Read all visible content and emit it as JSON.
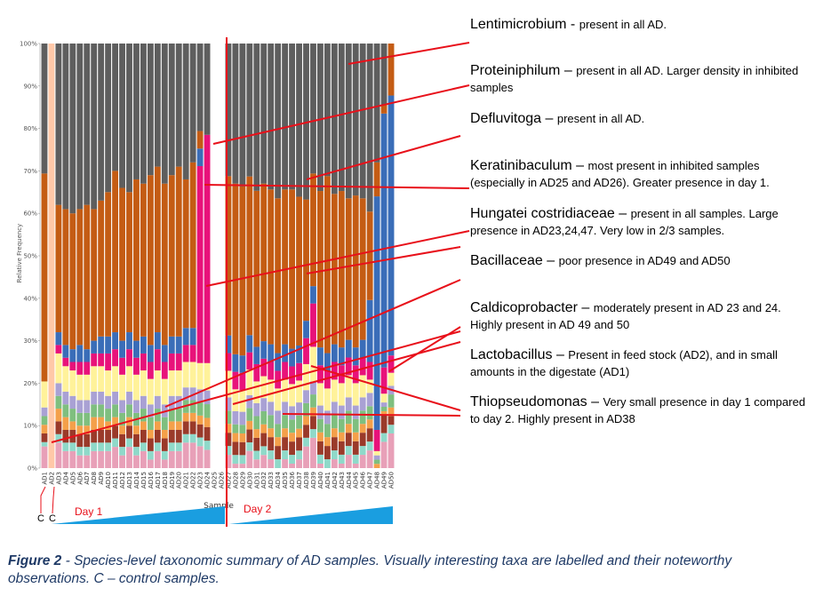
{
  "chart_data": {
    "type": "bar",
    "stacked": true,
    "ylabel": "Relative Frequency",
    "xlabel": "Sample",
    "yticks": [
      "0%",
      "10%",
      "20%",
      "30%",
      "40%",
      "50%",
      "60%",
      "70%",
      "80%",
      "90%",
      "100%"
    ],
    "categories": [
      "AD1",
      "AD2",
      "AD3",
      "AD4",
      "AD5",
      "AD6",
      "AD7",
      "AD8",
      "AD9",
      "AD10",
      "AD11",
      "AD12",
      "AD13",
      "AD14",
      "AD15",
      "AD16",
      "AD17",
      "AD18",
      "AD19",
      "AD20",
      "AD21",
      "AD22",
      "AD23",
      "AD24",
      "AD25",
      "AD26",
      "AD27",
      "AD28",
      "AD29",
      "AD30",
      "AD31",
      "AD32",
      "AD33",
      "AD34",
      "AD35",
      "AD36",
      "AD37",
      "AD38",
      "AD39",
      "AD40",
      "AD41",
      "AD42",
      "AD43",
      "AD44",
      "AD45",
      "AD46",
      "AD47",
      "AD48",
      "AD49",
      "AD50"
    ],
    "series": [
      {
        "name": "",
        "color": "#5e5e5e",
        "values": [
          30,
          0,
          38,
          39,
          40,
          39,
          38,
          39,
          37,
          35,
          30,
          34,
          35,
          32,
          33,
          31,
          29,
          33,
          31,
          29,
          32,
          28,
          20,
          20,
          0,
          0,
          30,
          32,
          33,
          31,
          34,
          32,
          33,
          35,
          33,
          33,
          35,
          36,
          30,
          33,
          30,
          34,
          33,
          35,
          34,
          35,
          38,
          28,
          14,
          0
        ]
      },
      {
        "name": "",
        "color": "#c45c14",
        "values": [
          48,
          0,
          30,
          32,
          32,
          32,
          34,
          31,
          32,
          34,
          38,
          36,
          33,
          38,
          36,
          40,
          39,
          38,
          38,
          40,
          35,
          39,
          4,
          0,
          0,
          0,
          36,
          39,
          39,
          37,
          36,
          36,
          35,
          35,
          35,
          36,
          34,
          28,
          26,
          35,
          40,
          34,
          35,
          32,
          34,
          32,
          20,
          8,
          2,
          12
        ]
      },
      {
        "name": "",
        "color": "#3a6db8",
        "values": [
          0,
          0,
          3,
          3,
          3,
          4,
          3,
          3,
          4,
          4,
          4,
          4,
          4,
          4,
          4,
          4,
          4,
          4,
          4,
          4,
          4,
          4,
          4,
          0,
          0,
          0,
          4,
          4,
          4,
          4,
          4,
          4,
          4,
          4,
          4,
          4,
          4,
          4,
          4,
          4,
          4,
          4,
          4,
          4,
          4,
          4,
          14,
          55,
          58,
          60
        ]
      },
      {
        "name": "",
        "color": "#e8127a",
        "values": [
          0,
          0,
          2,
          2,
          2,
          3,
          3,
          3,
          3,
          4,
          4,
          4,
          4,
          4,
          4,
          4,
          5,
          4,
          4,
          4,
          4,
          4,
          45,
          50,
          0,
          0,
          4,
          4,
          4,
          4,
          4,
          4,
          4,
          4,
          4,
          4,
          4,
          6,
          10,
          4,
          4,
          4,
          4,
          4,
          4,
          4,
          4,
          5,
          6,
          4
        ]
      },
      {
        "name": "",
        "color": "#fff29a",
        "values": [
          6,
          0,
          7,
          6,
          6,
          6,
          6,
          6,
          6,
          6,
          6,
          6,
          6,
          6,
          6,
          6,
          6,
          6,
          6,
          6,
          6,
          6,
          6,
          6,
          0,
          0,
          6,
          5,
          5,
          6,
          5,
          5,
          5,
          5,
          5,
          5,
          5,
          6,
          8,
          5,
          5,
          5,
          5,
          5,
          5,
          5,
          3,
          1,
          2,
          3
        ]
      },
      {
        "name": "",
        "color": "#a9a1d4",
        "values": [
          2,
          0,
          3,
          3,
          3,
          3,
          3,
          3,
          3,
          3,
          3,
          3,
          3,
          3,
          3,
          3,
          3,
          3,
          3,
          3,
          3,
          3,
          3,
          3,
          0,
          0,
          3,
          3,
          3,
          3,
          3,
          3,
          3,
          3,
          3,
          3,
          3,
          3,
          3,
          3,
          3,
          3,
          3,
          3,
          3,
          3,
          3,
          1,
          1,
          2
        ]
      },
      {
        "name": "",
        "color": "#7fbf7f",
        "values": [
          2,
          0,
          3,
          3,
          3,
          3,
          3,
          3,
          3,
          3,
          3,
          3,
          3,
          3,
          3,
          3,
          3,
          3,
          3,
          3,
          3,
          3,
          3,
          3,
          0,
          0,
          3,
          2,
          2,
          3,
          3,
          3,
          3,
          3,
          3,
          3,
          3,
          3,
          3,
          3,
          3,
          3,
          3,
          3,
          3,
          3,
          3,
          1,
          1,
          3
        ]
      },
      {
        "name": "",
        "color": "#f4a04a",
        "values": [
          2,
          0,
          3,
          3,
          2,
          2,
          2,
          3,
          3,
          2,
          2,
          2,
          2,
          2,
          2,
          2,
          2,
          2,
          2,
          2,
          2,
          2,
          2,
          2,
          0,
          0,
          2,
          2,
          2,
          2,
          2,
          2,
          2,
          2,
          2,
          2,
          2,
          2,
          2,
          2,
          2,
          2,
          2,
          2,
          2,
          2,
          2,
          1,
          1,
          2
        ]
      },
      {
        "name": "",
        "color": "#ffc8a8",
        "values": [
          0,
          100,
          0,
          0,
          0,
          0,
          0,
          0,
          0,
          0,
          0,
          0,
          0,
          0,
          0,
          0,
          0,
          0,
          0,
          0,
          0,
          0,
          0,
          0,
          0,
          0,
          0,
          0,
          0,
          0,
          0,
          0,
          0,
          0,
          0,
          0,
          0,
          0,
          0,
          0,
          0,
          0,
          0,
          0,
          0,
          0,
          0,
          0,
          0,
          0
        ]
      },
      {
        "name": "",
        "color": "#9a3a2a",
        "values": [
          2,
          0,
          3,
          3,
          3,
          3,
          3,
          3,
          3,
          3,
          3,
          3,
          3,
          3,
          3,
          3,
          3,
          3,
          3,
          3,
          3,
          3,
          3,
          3,
          0,
          0,
          3,
          3,
          3,
          3,
          3,
          3,
          3,
          3,
          3,
          3,
          3,
          3,
          3,
          3,
          3,
          3,
          3,
          3,
          3,
          3,
          3,
          0,
          4,
          2
        ]
      },
      {
        "name": "",
        "color": "#8fd9c9",
        "values": [
          1,
          0,
          2,
          2,
          2,
          2,
          2,
          2,
          2,
          2,
          2,
          2,
          2,
          2,
          2,
          2,
          2,
          2,
          2,
          2,
          2,
          2,
          2,
          2,
          0,
          0,
          2,
          2,
          2,
          2,
          2,
          2,
          2,
          2,
          2,
          2,
          2,
          2,
          2,
          2,
          2,
          2,
          2,
          2,
          2,
          2,
          2,
          0,
          2,
          2
        ]
      },
      {
        "name": "",
        "color": "#e8a0b8",
        "values": [
          5,
          0,
          6,
          4,
          4,
          3,
          3,
          4,
          4,
          4,
          5,
          3,
          5,
          3,
          4,
          2,
          4,
          2,
          4,
          4,
          6,
          6,
          5,
          4,
          0,
          0,
          3,
          1,
          1,
          4,
          2,
          3,
          2,
          0,
          2,
          1,
          2,
          5,
          7,
          1,
          0,
          2,
          1,
          3,
          1,
          3,
          4,
          0,
          6,
          8
        ]
      }
    ]
  },
  "sample_ticks": [
    "AD1",
    "AD2",
    "AD3",
    "AD4",
    "AD5",
    "AD6",
    "AD7",
    "AD8",
    "AD9",
    "AD10",
    "AD11",
    "AD12",
    "AD13",
    "AD14",
    "AD15",
    "AD16",
    "AD17",
    "AD18",
    "AD19",
    "AD20",
    "AD21",
    "AD22",
    "AD23",
    "AD24",
    "AD25",
    "AD26",
    "AD27",
    "AD28",
    "AD29",
    "AD30",
    "AD31",
    "AD32",
    "AD33",
    "AD34",
    "AD35",
    "AD36",
    "AD37",
    "AD38",
    "AD39",
    "AD40",
    "AD41",
    "AD42",
    "AD43",
    "AD44",
    "AD45",
    "AD46",
    "AD47",
    "AD48",
    "AD49",
    "AD50"
  ],
  "control_labels": [
    "C",
    "C"
  ],
  "day_labels": [
    "Day 1",
    "Day 2"
  ],
  "colors": {
    "divider": "#e8101a",
    "wedge": "#1a9ee0",
    "callout": "#e8101a",
    "caption": "#1f3a66"
  },
  "annotations": [
    {
      "name": "Lentimicrobium -",
      "desc": "present in all AD."
    },
    {
      "name": "Proteiniphilum –",
      "desc": "present in all AD. Larger density in inhibited samples"
    },
    {
      "name": "Defluvitoga –",
      "desc": "present in all AD."
    },
    {
      "name": "Keratinibaculum –",
      "desc": "most present in inhibited samples (especially in AD25 and AD26). Greater presence in day 1."
    },
    {
      "name": "Hungatei costridiaceae –",
      "desc": "present in all samples. Large presence in AD23,24,47. Very low in 2/3 samples."
    },
    {
      "name": "Bacillaceae –",
      "desc": "poor presence in AD49 and AD50"
    },
    {
      "name": "Caldicoprobacter –",
      "desc": "moderately present in AD 23 and 24. Highly present in AD 49 and 50"
    },
    {
      "name": "Lactobacillus –",
      "desc": "Present in feed stock (AD2), and in small amounts in the digestate (AD1)"
    },
    {
      "name": "Thiopseudomonas –",
      "desc": "Very small presence in day 1 compared to day 2. Highly present in AD38"
    }
  ],
  "caption": {
    "lead": "Figure 2",
    "text": " - Species-level taxonomic summary of AD samples. Visually interesting taxa are labelled and their noteworthy observations. C – control samples."
  }
}
